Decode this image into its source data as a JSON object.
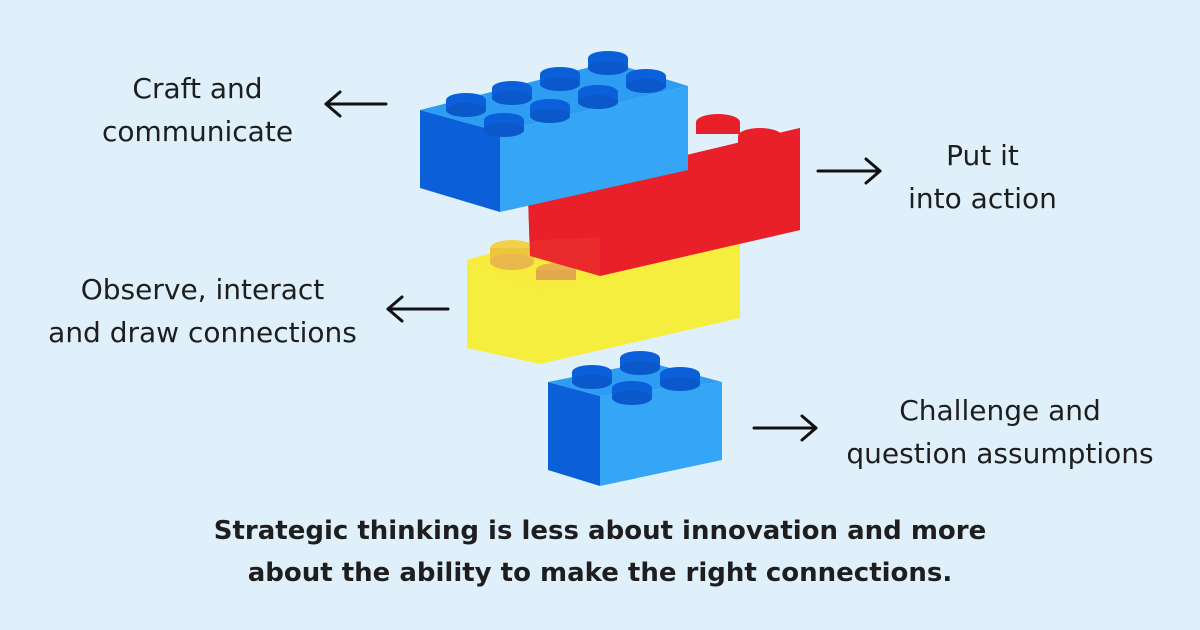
{
  "colors": {
    "background": "#dff0fb",
    "blue_top": "#2d9df3",
    "blue_front": "#35a6f5",
    "blue_side": "#0b5fd9",
    "red_top": "#e9202a",
    "red_front": "#e9202a",
    "red_side": "#c8121b",
    "yellow_top": "#f7ec3c",
    "yellow_front": "#f6ee3e",
    "yellow_side": "#e3cf22",
    "text": "#1e1e1e"
  },
  "labels": [
    {
      "id": "craft",
      "lines": [
        "Craft and",
        "communicate"
      ],
      "arrow": "left-arrow"
    },
    {
      "id": "action",
      "lines": [
        "Put it",
        "into action"
      ],
      "arrow": "right-arrow"
    },
    {
      "id": "observe",
      "lines": [
        "Observe, interact",
        "and draw connections"
      ],
      "arrow": "left-arrow"
    },
    {
      "id": "challenge",
      "lines": [
        "Challenge and",
        "question assumptions"
      ],
      "arrow": "right-arrow"
    }
  ],
  "caption": {
    "line1": "Strategic thinking is less about innovation and more",
    "line2": "about the ability to make the right connections."
  }
}
